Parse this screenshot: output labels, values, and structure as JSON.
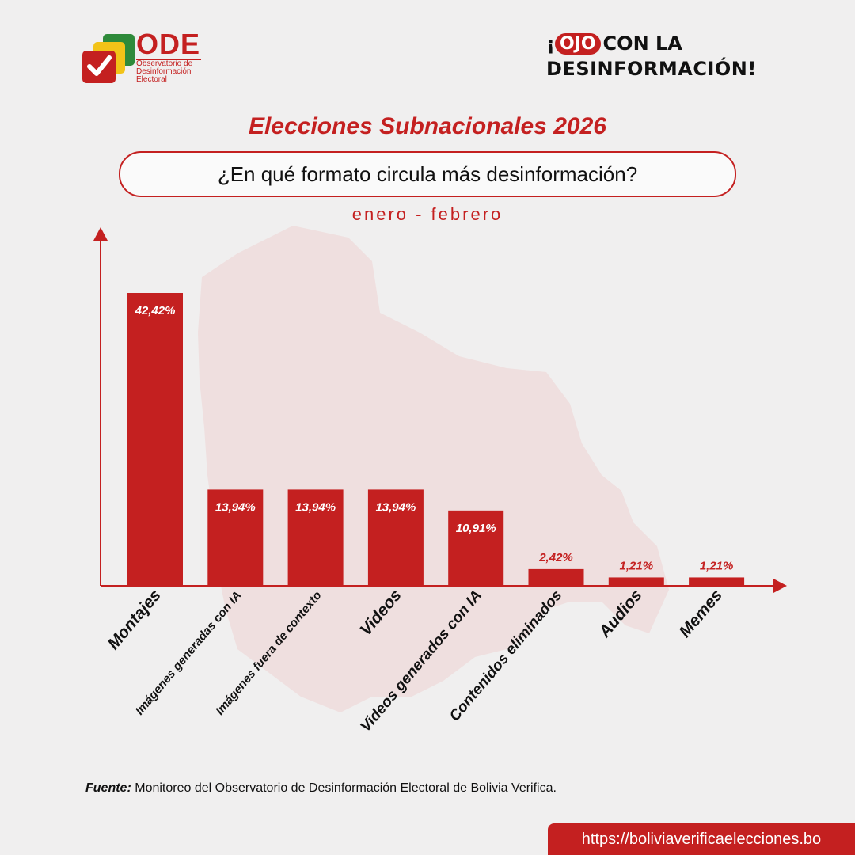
{
  "header": {
    "logo": {
      "acronym": "ODE",
      "subtitle_lines": [
        "Observatorio de",
        "Desinformación",
        "Electoral"
      ]
    },
    "badge": {
      "prefix": "¡",
      "highlight": "OJO",
      "line1_rest": "CON LA",
      "line2": "DESINFORMACIÓN!"
    }
  },
  "title": "Elecciones Subnacionales 2026",
  "question": "¿En qué formato circula más desinformación?",
  "period": "enero - febrero",
  "chart_data": {
    "type": "bar",
    "categories": [
      "Montajes",
      "Imágenes generadas con IA",
      "Imágenes fuera de contexto",
      "Videos",
      "Videos generados con IA",
      "Contenidos eliminados",
      "Audios",
      "Memes"
    ],
    "values": [
      42.42,
      13.94,
      13.94,
      13.94,
      10.91,
      2.42,
      1.21,
      1.21
    ],
    "labels": [
      "42,42%",
      "13,94%",
      "13,94%",
      "13,94%",
      "10,91%",
      "2,42%",
      "1,21%",
      "1,21%"
    ],
    "title": "¿En qué formato circula más desinformación?",
    "xlabel": "",
    "ylabel": "",
    "ylim": [
      0,
      50
    ],
    "color": "#c42020"
  },
  "footer": {
    "source_label": "Fuente:",
    "source_text": "Monitoreo del Observatorio de Desinformación Electoral de Bolivia Verifica.",
    "url": "https://boliviaverificaelecciones.bo"
  },
  "colors": {
    "accent": "#c42020",
    "background": "#f0efef",
    "map": "#efdcdc"
  }
}
